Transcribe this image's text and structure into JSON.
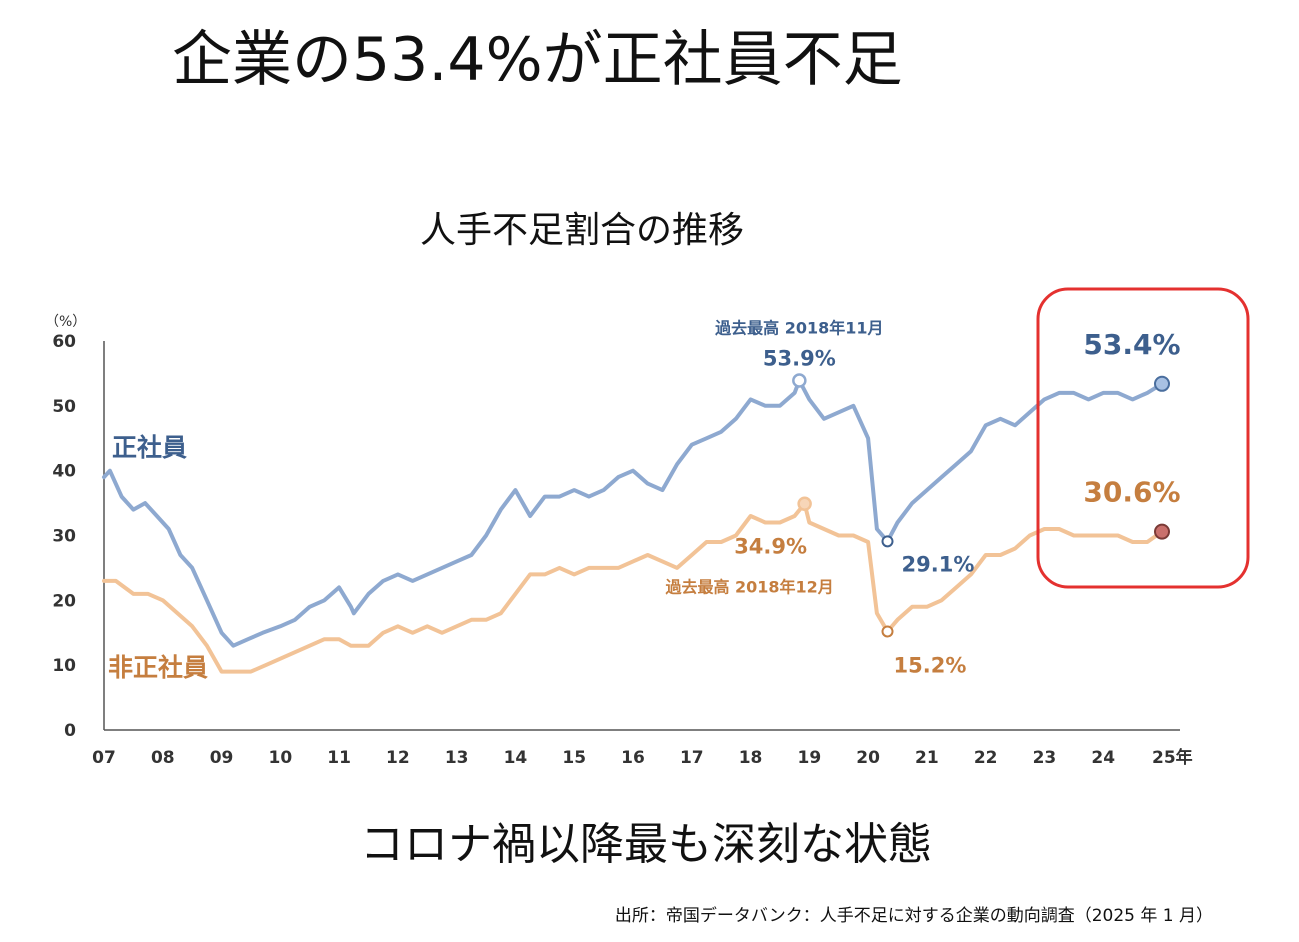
{
  "headline": "企業の53.4%が正社員不足",
  "conclusion": "コロナ禍以降最も深刻な状態",
  "source": "出所：帝国データバンク：人手不足に対する企業の動向調査（2025 年 1 月）",
  "chart_data": {
    "type": "line",
    "title": "人手不足割合の推移",
    "ylabel": "（%）",
    "xlabel": "",
    "ylim": [
      0,
      60
    ],
    "yticks": [
      "0",
      "10",
      "20",
      "30",
      "40",
      "50",
      "60"
    ],
    "xlim": [
      2007,
      2025
    ],
    "xticks": [
      "07",
      "08",
      "09",
      "10",
      "11",
      "12",
      "13",
      "14",
      "15",
      "16",
      "17",
      "18",
      "19",
      "20",
      "21",
      "22",
      "23",
      "24",
      "25年"
    ],
    "grid": false,
    "series": [
      {
        "name": "正社員",
        "color": "#8EA9D0",
        "label_color": "#3D5F8D",
        "x": [
          2007.0,
          2007.1,
          2007.3,
          2007.5,
          2007.7,
          2007.9,
          2008.1,
          2008.3,
          2008.5,
          2008.75,
          2009.0,
          2009.2,
          2009.45,
          2009.7,
          2010.0,
          2010.25,
          2010.5,
          2010.75,
          2011.0,
          2011.2,
          2011.25,
          2011.5,
          2011.75,
          2012.0,
          2012.25,
          2012.5,
          2012.75,
          2013.0,
          2013.25,
          2013.5,
          2013.75,
          2014.0,
          2014.25,
          2014.5,
          2014.75,
          2015.0,
          2015.25,
          2015.5,
          2015.75,
          2016.0,
          2016.25,
          2016.5,
          2016.75,
          2017.0,
          2017.25,
          2017.5,
          2017.75,
          2018.0,
          2018.25,
          2018.5,
          2018.75,
          2018.83,
          2019.0,
          2019.25,
          2019.5,
          2019.75,
          2020.0,
          2020.15,
          2020.33,
          2020.5,
          2020.75,
          2021.0,
          2021.25,
          2021.5,
          2021.75,
          2022.0,
          2022.25,
          2022.5,
          2022.75,
          2023.0,
          2023.25,
          2023.5,
          2023.75,
          2024.0,
          2024.25,
          2024.5,
          2024.75,
          2025.0
        ],
        "values": [
          39,
          40,
          36,
          34,
          35,
          33,
          31,
          27,
          25,
          20,
          15,
          13,
          14,
          15,
          16,
          17,
          19,
          20,
          22,
          19,
          18,
          21,
          23,
          24,
          23,
          24,
          25,
          26,
          27,
          30,
          34,
          37,
          33,
          36,
          36,
          37,
          36,
          37,
          39,
          40,
          38,
          37,
          41,
          44,
          45,
          46,
          48,
          51,
          50,
          50,
          52,
          53.9,
          51,
          48,
          49,
          50,
          45,
          31,
          29.1,
          32,
          35,
          37,
          39,
          41,
          43,
          47,
          48,
          47,
          49,
          51,
          52,
          52,
          51,
          52,
          52,
          51,
          52,
          53.4
        ]
      },
      {
        "name": "非正社員",
        "color": "#F2C397",
        "label_color": "#C57E3F",
        "x": [
          2007.0,
          2007.2,
          2007.5,
          2007.75,
          2008.0,
          2008.25,
          2008.5,
          2008.75,
          2009.0,
          2009.25,
          2009.5,
          2009.75,
          2010.0,
          2010.25,
          2010.5,
          2010.75,
          2011.0,
          2011.2,
          2011.5,
          2011.75,
          2012.0,
          2012.25,
          2012.5,
          2012.75,
          2013.0,
          2013.25,
          2013.5,
          2013.75,
          2014.0,
          2014.25,
          2014.5,
          2014.75,
          2015.0,
          2015.25,
          2015.5,
          2015.75,
          2016.0,
          2016.25,
          2016.5,
          2016.75,
          2017.0,
          2017.25,
          2017.5,
          2017.75,
          2018.0,
          2018.25,
          2018.5,
          2018.75,
          2018.92,
          2019.0,
          2019.25,
          2019.5,
          2019.75,
          2020.0,
          2020.15,
          2020.33,
          2020.5,
          2020.75,
          2021.0,
          2021.25,
          2021.5,
          2021.75,
          2022.0,
          2022.25,
          2022.5,
          2022.75,
          2023.0,
          2023.25,
          2023.5,
          2023.75,
          2024.0,
          2024.25,
          2024.5,
          2024.75,
          2025.0
        ],
        "values": [
          23,
          23,
          21,
          21,
          20,
          18,
          16,
          13,
          9,
          9,
          9,
          10,
          11,
          12,
          13,
          14,
          14,
          13,
          13,
          15,
          16,
          15,
          16,
          15,
          16,
          17,
          17,
          18,
          21,
          24,
          24,
          25,
          24,
          25,
          25,
          25,
          26,
          27,
          26,
          25,
          27,
          29,
          29,
          30,
          33,
          32,
          32,
          33,
          34.9,
          32,
          31,
          30,
          30,
          29,
          18,
          15.2,
          17,
          19,
          19,
          20,
          22,
          24,
          27,
          27,
          28,
          30,
          31,
          31,
          30,
          30,
          30,
          30,
          29,
          29,
          30.6
        ]
      }
    ],
    "annotations": [
      {
        "series": 0,
        "text": "53.9%",
        "note": "過去最高 2018年11月",
        "x": 2018.83,
        "value": 53.9
      },
      {
        "series": 0,
        "text": "29.1%",
        "x": 2020.33,
        "value": 29.1
      },
      {
        "series": 0,
        "text": "53.4%",
        "x": 2025.0,
        "value": 53.4
      },
      {
        "series": 1,
        "text": "34.9%",
        "note": "過去最高 2018年12月",
        "x": 2018.92,
        "value": 34.9
      },
      {
        "series": 1,
        "text": "15.2%",
        "x": 2020.33,
        "value": 15.2
      },
      {
        "series": 1,
        "text": "30.6%",
        "x": 2025.0,
        "value": 30.6
      }
    ],
    "highlight_color": "#E4312F"
  }
}
